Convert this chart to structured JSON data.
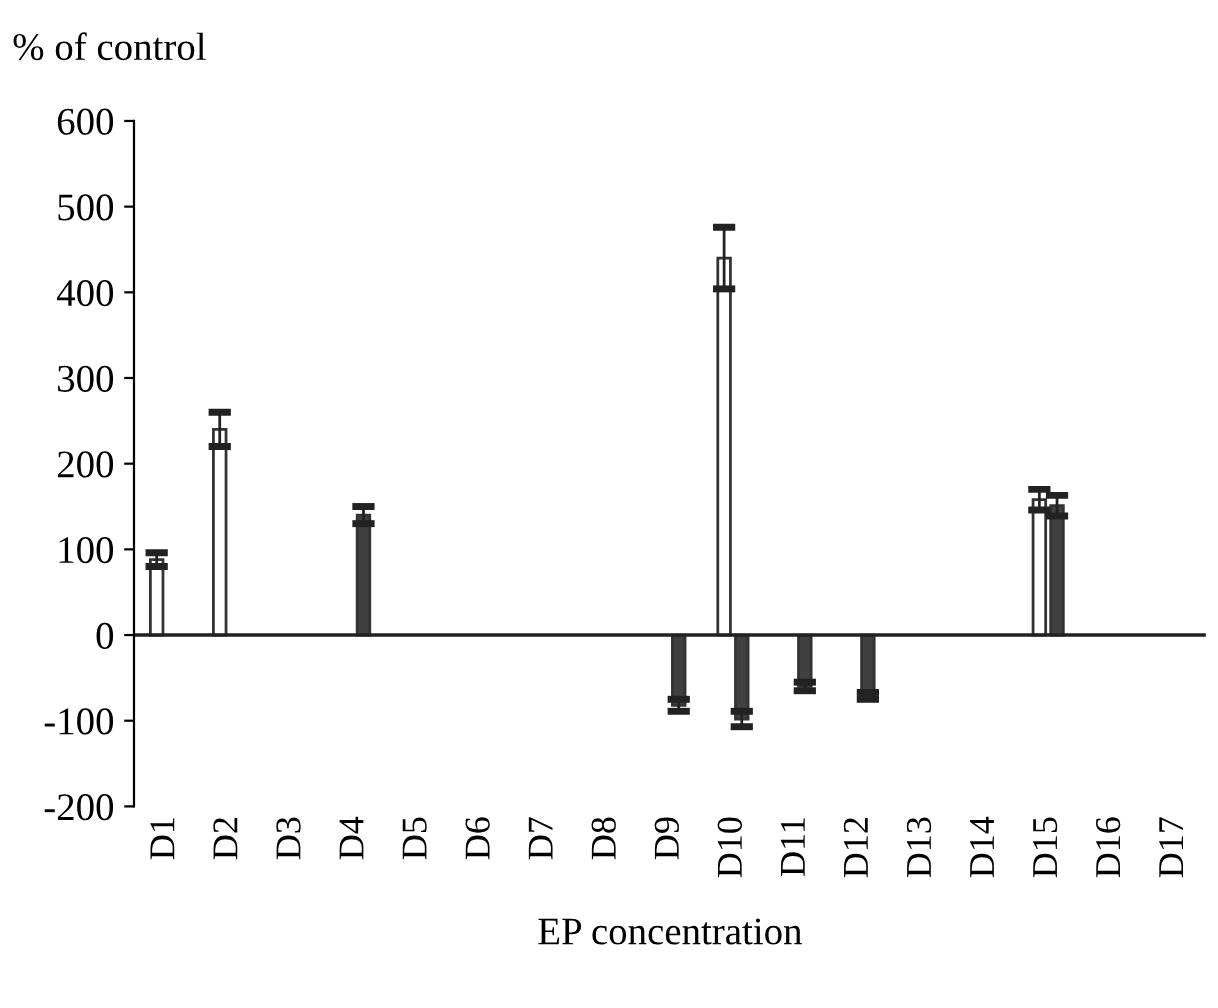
{
  "chart_data": {
    "type": "bar",
    "ylabel": "% of control",
    "xlabel": "EP concentration",
    "categories": [
      "D1",
      "D2",
      "D3",
      "D4",
      "D5",
      "D6",
      "D7",
      "D8",
      "D9",
      "D10",
      "D11",
      "D12",
      "D13",
      "D14",
      "D15",
      "D16",
      "D17"
    ],
    "series": [
      {
        "color": "#ffffff",
        "values": [
          88,
          240,
          null,
          null,
          null,
          null,
          null,
          null,
          null,
          440,
          null,
          null,
          null,
          null,
          158,
          null,
          null
        ],
        "errors": [
          8,
          20,
          null,
          null,
          null,
          null,
          null,
          null,
          null,
          36,
          null,
          null,
          null,
          null,
          12,
          null,
          null
        ]
      },
      {
        "color": "#404040",
        "values": [
          null,
          null,
          null,
          140,
          null,
          null,
          null,
          null,
          -82,
          -98,
          -60,
          -71,
          null,
          null,
          151,
          null,
          null
        ],
        "errors": [
          null,
          null,
          null,
          10,
          null,
          null,
          null,
          null,
          7,
          9,
          5,
          4,
          null,
          null,
          12,
          null,
          null
        ]
      }
    ],
    "ylim": [
      -200,
      600
    ],
    "yticks": [
      -200,
      -100,
      0,
      100,
      200,
      300,
      400,
      500,
      600
    ],
    "ref_lines": [
      {
        "axis": "y",
        "value": 0,
        "color": "#222222",
        "line_style": "solid"
      }
    ]
  }
}
